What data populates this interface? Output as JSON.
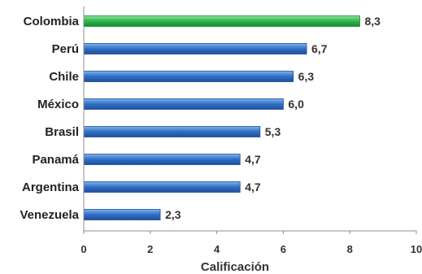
{
  "chart_data": {
    "type": "bar",
    "orientation": "horizontal",
    "categories": [
      "Colombia",
      "Perú",
      "Chile",
      "México",
      "Brasil",
      "Panamá",
      "Argentina",
      "Venezuela"
    ],
    "values": [
      8.3,
      6.7,
      6.3,
      6.0,
      5.3,
      4.7,
      4.7,
      2.3
    ],
    "value_labels": [
      "8,3",
      "6,7",
      "6,3",
      "6,0",
      "5,3",
      "4,7",
      "4,7",
      "2,3"
    ],
    "highlight_index": 0,
    "xlabel": "Calificación",
    "ylabel": "",
    "xlim": [
      0,
      10
    ],
    "x_ticks": [
      0,
      2,
      4,
      6,
      8,
      10
    ],
    "x_tick_labels": [
      "0",
      "2",
      "4",
      "6",
      "8",
      "10"
    ],
    "grid": false,
    "colors": {
      "highlight": "#2db34a",
      "highlight_dark": "#178a33",
      "bar": "#2f6fc4",
      "bar_dark": "#1f4f99"
    }
  }
}
